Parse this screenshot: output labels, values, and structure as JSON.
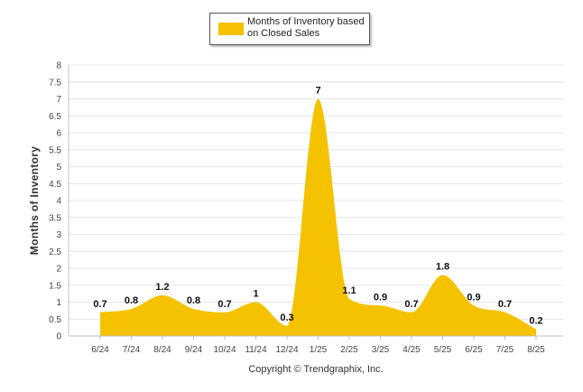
{
  "chart_data": {
    "type": "area",
    "title": "",
    "legend": {
      "label": "Months of Inventory based on Closed Sales",
      "position": "top-center"
    },
    "ylabel": "Months of Inventory",
    "xlabel": "",
    "ylim": [
      0,
      8
    ],
    "yticks": [
      "0",
      "0.5",
      "1",
      "1.5",
      "2",
      "2.5",
      "3",
      "3.5",
      "4",
      "4.5",
      "5",
      "5.5",
      "6",
      "6.5",
      "7",
      "7.5",
      "8"
    ],
    "categories": [
      "6/24",
      "7/24",
      "8/24",
      "9/24",
      "10/24",
      "11/24",
      "12/24",
      "1/25",
      "2/25",
      "3/25",
      "4/25",
      "5/25",
      "6/25",
      "7/25",
      "8/25"
    ],
    "series": [
      {
        "name": "Months of Inventory based on Closed Sales",
        "values": [
          0.7,
          0.8,
          1.2,
          0.8,
          0.7,
          1,
          0.3,
          7,
          1.1,
          0.9,
          0.7,
          1.8,
          0.9,
          0.7,
          0.2
        ],
        "labels": [
          "0.7",
          "0.8",
          "1.2",
          "0.8",
          "0.7",
          "1",
          "0.3",
          "7",
          "1.1",
          "0.9",
          "0.7",
          "1.8",
          "0.9",
          "0.7",
          "0.2"
        ]
      }
    ],
    "grid": true,
    "colors": {
      "fill": "#f5c200",
      "grid": "#e6e6e6",
      "axis": "#c0c0c0"
    }
  },
  "footer": {
    "copyright": "Copyright © Trendgraphix, Inc."
  }
}
